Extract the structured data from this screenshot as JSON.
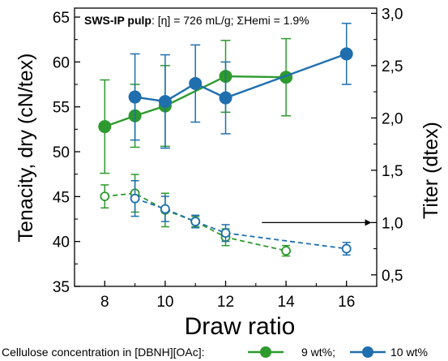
{
  "chart_data": {
    "type": "line",
    "title": {
      "bold": "SWS-IP pulp",
      "rest": ": [η] = 726 mL/g; ΣHemi = 1.9%"
    },
    "xlabel": "Draw ratio",
    "ylabel_left": "Tenacity, dry (cN/tex)",
    "ylabel_right": "Titer (dtex)",
    "xlim": [
      7,
      17
    ],
    "ylim_left": [
      35,
      66
    ],
    "ylim_right": [
      0.39,
      3.05
    ],
    "x_ticks": [
      8,
      10,
      12,
      14,
      16
    ],
    "x_tick_labels": [
      "8",
      "10",
      "12",
      "14",
      "16"
    ],
    "y_left_ticks": [
      35,
      40,
      45,
      50,
      55,
      60,
      65
    ],
    "y_left_tick_labels": [
      "35",
      "40",
      "45",
      "50",
      "55",
      "60",
      "65"
    ],
    "y_right_ticks": [
      0.5,
      1.0,
      1.5,
      2.0,
      2.5,
      3.0
    ],
    "y_right_tick_labels": [
      "0,5",
      "1,0",
      "1,5",
      "2,0",
      "2,5",
      "3,0"
    ],
    "grid": false,
    "legend": {
      "prefix": "Cellulose concentration in [DBNH][OAc]:",
      "separator": ";",
      "placement": "bottom"
    },
    "colors": {
      "green": "#2e9a2e",
      "blue": "#1f6fae"
    },
    "series": [
      {
        "name": "9 wt%",
        "color_key": "green",
        "axis": "left",
        "style": "solid-filled",
        "points": [
          {
            "x": 8,
            "y": 52.8,
            "err": 5.2
          },
          {
            "x": 9,
            "y": 54.0,
            "err": 3.5
          },
          {
            "x": 10,
            "y": 55.1,
            "err": 4.5
          },
          {
            "x": 12,
            "y": 58.4,
            "err": 4.0
          },
          {
            "x": 14,
            "y": 58.3,
            "err": 4.3
          }
        ]
      },
      {
        "name": "10 wt%",
        "color_key": "blue",
        "axis": "left",
        "style": "solid-filled",
        "points": [
          {
            "x": 9,
            "y": 56.1,
            "err": 4.8
          },
          {
            "x": 10,
            "y": 55.6,
            "err": 5.2
          },
          {
            "x": 11,
            "y": 57.6,
            "err": 4.3
          },
          {
            "x": 12,
            "y": 56.0,
            "err": 4.0
          },
          {
            "x": 16,
            "y": 60.9,
            "err": 3.4
          }
        ]
      },
      {
        "name": "9 wt%",
        "color_key": "green",
        "axis": "right",
        "style": "dashed-open",
        "points": [
          {
            "x": 8,
            "y": 1.25,
            "err": 0.11
          },
          {
            "x": 9,
            "y": 1.28,
            "err": 0.18
          },
          {
            "x": 10,
            "y": 1.12,
            "err": 0.16
          },
          {
            "x": 11,
            "y": 1.01,
            "err": 0.05
          },
          {
            "x": 12,
            "y": 0.86,
            "err": 0.08
          },
          {
            "x": 14,
            "y": 0.73,
            "err": 0.05
          }
        ]
      },
      {
        "name": "10 wt%",
        "color_key": "blue",
        "axis": "right",
        "style": "dashed-open",
        "points": [
          {
            "x": 9,
            "y": 1.23,
            "err": 0.17
          },
          {
            "x": 10,
            "y": 1.13,
            "err": 0.12
          },
          {
            "x": 11,
            "y": 1.01,
            "err": 0.06
          },
          {
            "x": 12,
            "y": 0.9,
            "err": 0.08
          },
          {
            "x": 16,
            "y": 0.75,
            "err": 0.06
          }
        ]
      }
    ],
    "annotations": [
      {
        "type": "arrow",
        "from_x": 13.2,
        "to_x": 16.8,
        "y_right": 1.0,
        "direction": "right"
      }
    ]
  }
}
